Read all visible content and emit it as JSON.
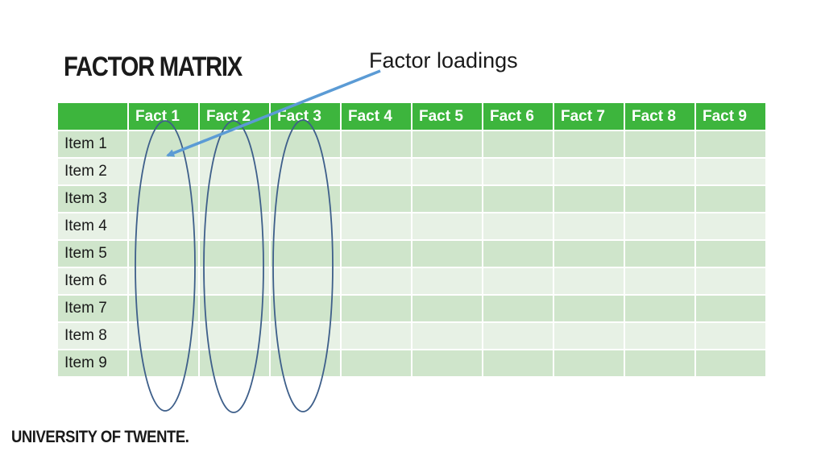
{
  "slide": {
    "title": "FACTOR MATRIX",
    "annotation": "Factor loadings",
    "footer": "UNIVERSITY OF TWENTE."
  },
  "table": {
    "corner": "",
    "columns": [
      "Fact 1",
      "Fact 2",
      "Fact 3",
      "Fact 4",
      "Fact 5",
      "Fact 6",
      "Fact 7",
      "Fact 8",
      "Fact 9"
    ],
    "rows": [
      "Item 1",
      "Item 2",
      "Item 3",
      "Item 4",
      "Item 5",
      "Item 6",
      "Item 7",
      "Item 8",
      "Item 9"
    ]
  },
  "colors": {
    "header_green": "#3db53d",
    "row_dark": "#cfe5cb",
    "row_light": "#e7f1e5",
    "ellipse_stroke": "#3e5f8a",
    "arrow": "#5b9bd5"
  },
  "highlighted_columns": [
    "Fact 1",
    "Fact 2",
    "Fact 3"
  ]
}
